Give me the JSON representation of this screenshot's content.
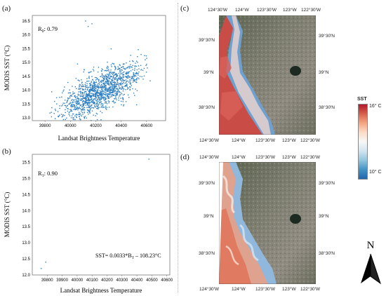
{
  "panels": {
    "a": "(a)",
    "b": "(b)",
    "c": "(c)",
    "d": "(d)"
  },
  "chart_data": [
    {
      "type": "scatter",
      "panel": "(a)",
      "title": "",
      "xlabel": "Landsat Brightness Temperature",
      "ylabel": "MODIS SST (°C)",
      "xlim": [
        39700,
        40750
      ],
      "ylim": [
        12.9,
        16.7
      ],
      "xticks": [
        39800,
        40000,
        40200,
        40400,
        40600
      ],
      "yticks": [
        13.0,
        13.5,
        14.0,
        14.5,
        15.0,
        15.5,
        16.0,
        16.5
      ],
      "ytick_labels": [
        "13.0",
        "13.5",
        "14.0",
        "14.5",
        "15.0",
        "15.5",
        "16.0",
        "16.5"
      ],
      "annotation": {
        "prefix": "R",
        "sub": "0",
        "text": ": 0.79"
      },
      "color": "#2f7fc1",
      "trend": {
        "slope": 0.0022,
        "intercept": -74.55
      },
      "x_range": [
        39780,
        40700
      ],
      "spread": 0.35,
      "extra_points": [
        [
          40120,
          16.5
        ],
        [
          40170,
          16.4
        ],
        [
          40140,
          16.3
        ],
        [
          39850,
          13.2
        ]
      ]
    },
    {
      "type": "scatter",
      "panel": "(b)",
      "title": "",
      "xlabel": "Landsat Brightness Temperature",
      "ylabel": "MODIS SST (°C)",
      "xlim": [
        39700,
        40620
      ],
      "ylim": [
        12.0,
        15.75
      ],
      "xticks": [
        39800,
        39900,
        40000,
        40100,
        40200,
        40300,
        40400,
        40500,
        40600
      ],
      "yticks": [
        12.0,
        12.5,
        13.0,
        13.5,
        14.0,
        14.5,
        15.0,
        15.5
      ],
      "ytick_labels": [
        "12.0",
        "12.5",
        "13.0",
        "13.5",
        "14.0",
        "14.5",
        "15.0",
        "15.5"
      ],
      "annotation": {
        "prefix": "R",
        "sub": "1",
        "text": ": 0.90"
      },
      "equation": {
        "pre": "SST= 0.0033*B",
        "sub": "T",
        "post": " – 108.23°C"
      },
      "color": "#2f7fc1",
      "trend": {
        "slope": 0.0033,
        "intercept": -108.23
      },
      "x_range": [
        39770,
        40560
      ],
      "spread": 0.22,
      "extra_points": [
        [
          39760,
          12.2
        ],
        [
          39790,
          12.4
        ],
        [
          40480,
          15.6
        ]
      ]
    }
  ],
  "maps": {
    "top_ticks": [
      "124°30'W",
      "124°W",
      "123°30'W",
      "123°W",
      "122°30'W"
    ],
    "bottom_ticks": [
      "124°30'W",
      "124°W",
      "123°30'W",
      "123°W",
      "122°30'W"
    ],
    "left_ticks": [
      "39°30'N",
      "39°N",
      "38°30'N"
    ],
    "right_ticks": [
      "39°30'N",
      "39°N",
      "38°30'N"
    ]
  },
  "colorbar": {
    "title": "SST",
    "max_label": "16° C",
    "min_label": "10° C",
    "colors": [
      "#b2182b",
      "#d6604d",
      "#f4a582",
      "#fddbc7",
      "#f7f7f7",
      "#d1e5f0",
      "#92c5de",
      "#4393c3",
      "#2166ac"
    ]
  },
  "north_label": "N"
}
